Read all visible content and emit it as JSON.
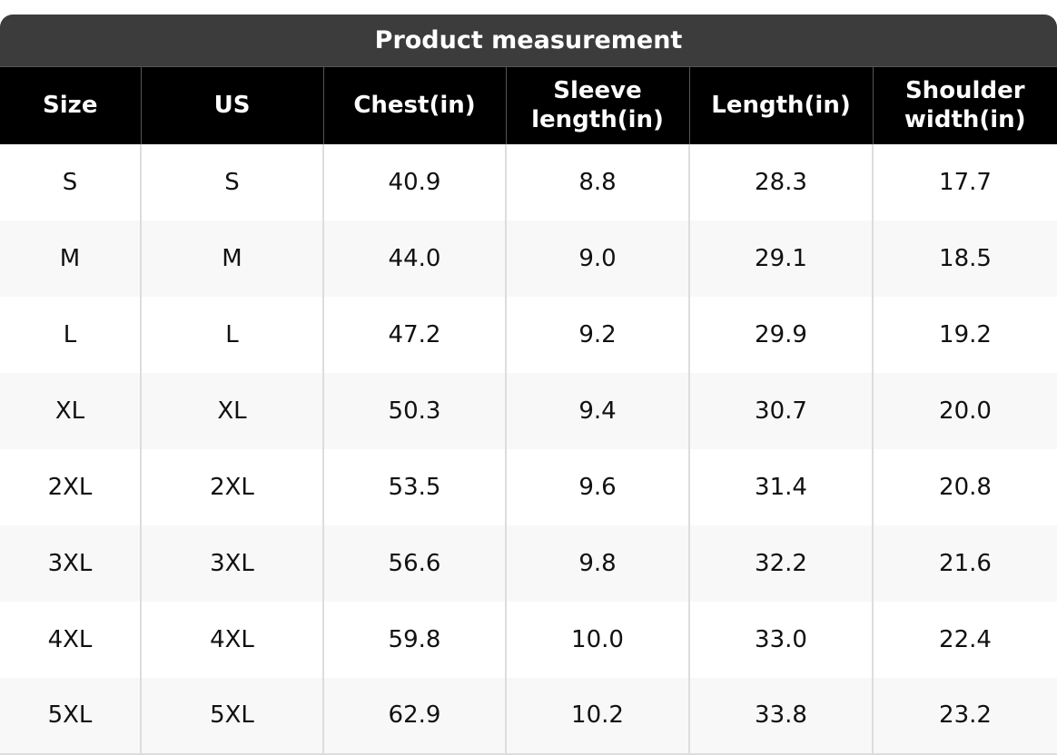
{
  "table": {
    "title": "Product measurement",
    "columns": [
      "Size",
      "US",
      "Chest(in)",
      "Sleeve length(in)",
      "Length(in)",
      "Shoulder width(in)"
    ],
    "rows": [
      [
        "S",
        "S",
        "40.9",
        "8.8",
        "28.3",
        "17.7"
      ],
      [
        "M",
        "M",
        "44.0",
        "9.0",
        "29.1",
        "18.5"
      ],
      [
        "L",
        "L",
        "47.2",
        "9.2",
        "29.9",
        "19.2"
      ],
      [
        "XL",
        "XL",
        "50.3",
        "9.4",
        "30.7",
        "20.0"
      ],
      [
        "2XL",
        "2XL",
        "53.5",
        "9.6",
        "31.4",
        "20.8"
      ],
      [
        "3XL",
        "3XL",
        "56.6",
        "9.8",
        "32.2",
        "21.6"
      ],
      [
        "4XL",
        "4XL",
        "59.8",
        "10.0",
        "33.0",
        "22.4"
      ],
      [
        "5XL",
        "5XL",
        "62.9",
        "10.2",
        "33.8",
        "23.2"
      ]
    ]
  }
}
